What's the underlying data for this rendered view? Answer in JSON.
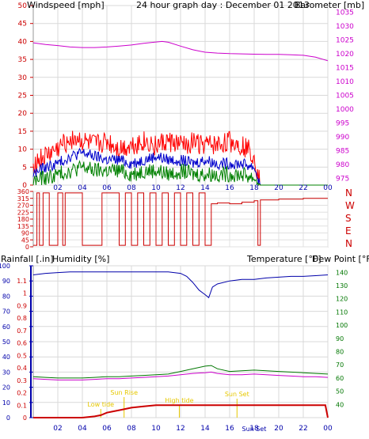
{
  "colors": {
    "wind_avg": "#0000cc",
    "wind_gust": "#ff0000",
    "wind_low": "#008000",
    "barometer": "#cc00cc",
    "direction": "#cc0000",
    "rain": "#cc0000",
    "humidity": "#0000aa",
    "temperature": "#007700",
    "dewpoint": "#cc00cc",
    "events": "#e6c800",
    "axis": "#cc0000"
  },
  "chart_data": [
    {
      "type": "line",
      "title": "24 hour graph day : December 01 2013",
      "left_axis_title": "Windspeed [mph]",
      "right_axis_title": "Barometer [mb]",
      "x_ticks": [
        "02",
        "04",
        "06",
        "08",
        "10",
        "12",
        "14",
        "16",
        "18",
        "20",
        "22",
        "00"
      ],
      "y_left_ticks": [
        "0",
        "5",
        "10",
        "15",
        "20",
        "25",
        "30",
        "35",
        "40",
        "45",
        "50"
      ],
      "y_left_range": [
        0,
        50
      ],
      "y_right_ticks": [
        "975",
        "980",
        "985",
        "990",
        "995",
        "1000",
        "1005",
        "1010",
        "1015",
        "1020",
        "1025",
        "1030",
        "1035"
      ],
      "y_right_range": [
        972.5,
        1037.5
      ],
      "x_range_hours": [
        0,
        24
      ],
      "series": [
        {
          "key": "wind_gust",
          "hours": [
            0,
            1,
            2,
            3,
            3.5,
            4,
            5,
            6,
            7,
            8,
            9,
            10,
            11,
            12,
            13,
            14,
            15,
            16,
            17,
            17.5,
            18,
            18.5,
            24
          ],
          "values": [
            6,
            8,
            10,
            13,
            13,
            12,
            11,
            12,
            10,
            11,
            12,
            11,
            12,
            11,
            12,
            11,
            11,
            12,
            11,
            10,
            8,
            0,
            0
          ]
        },
        {
          "key": "wind_avg",
          "hours": [
            0,
            1,
            2,
            3,
            4,
            5,
            6,
            7,
            8,
            9,
            10,
            11,
            12,
            13,
            14,
            15,
            16,
            17,
            18,
            18.5,
            24
          ],
          "values": [
            3,
            5,
            6,
            8,
            9,
            8,
            7,
            7,
            6,
            7,
            8,
            7,
            7,
            6,
            7,
            6,
            6,
            6,
            5,
            0,
            0
          ]
        },
        {
          "key": "wind_low",
          "hours": [
            0,
            1,
            2,
            3,
            4,
            5,
            6,
            7,
            8,
            9,
            10,
            11,
            12,
            13,
            14,
            15,
            16,
            17,
            18,
            18.5,
            24
          ],
          "values": [
            1,
            2,
            3,
            4,
            5,
            4,
            4,
            4,
            3,
            4,
            4,
            3,
            4,
            3,
            3,
            3,
            3,
            3,
            2,
            0,
            0
          ]
        },
        {
          "key": "barometer",
          "hours": [
            0,
            1,
            2,
            3,
            4,
            5,
            6,
            7,
            8,
            9,
            10,
            10.5,
            11,
            12,
            13,
            14,
            15,
            16,
            17,
            18,
            19,
            20,
            21,
            22,
            23,
            24
          ],
          "values": [
            1024,
            1023.4,
            1023,
            1022.5,
            1022.3,
            1022.3,
            1022.5,
            1022.8,
            1023.2,
            1023.8,
            1024.3,
            1024.5,
            1024.2,
            1022.8,
            1021.5,
            1020.6,
            1020.3,
            1020.1,
            1020,
            1019.9,
            1019.8,
            1019.8,
            1019.7,
            1019.5,
            1018.8,
            1017.5
          ]
        }
      ]
    },
    {
      "type": "line",
      "title": "",
      "y_left_ticks": [
        "0",
        "45",
        "90",
        "135",
        "180",
        "225",
        "270",
        "315",
        "360"
      ],
      "y_left_range": [
        0,
        360
      ],
      "compass_labels": [
        "N",
        "W",
        "S",
        "E",
        "N"
      ],
      "x_range_hours": [
        0,
        24
      ],
      "series": [
        {
          "key": "direction",
          "hours": [
            0,
            0.3,
            0.5,
            0.8,
            1,
            1.3,
            2,
            2.4,
            2.6,
            3,
            4,
            4.5,
            5,
            5.6,
            6,
            7,
            7.5,
            8,
            8.5,
            9,
            9.5,
            10,
            10.5,
            11,
            11.5,
            12,
            12.5,
            13,
            13.5,
            14,
            14.5,
            15,
            16,
            17,
            18,
            18.3,
            18.5,
            20,
            22,
            24
          ],
          "values": [
            10,
            350,
            10,
            350,
            350,
            10,
            350,
            10,
            350,
            350,
            10,
            10,
            10,
            350,
            350,
            10,
            350,
            10,
            350,
            10,
            350,
            10,
            350,
            10,
            350,
            10,
            350,
            10,
            350,
            10,
            280,
            285,
            280,
            290,
            300,
            10,
            305,
            310,
            315,
            315
          ]
        }
      ]
    },
    {
      "type": "line",
      "title": "",
      "left_axis_title_1": "Rainfall [.in]",
      "left_axis_title_2": "Humidity [%]",
      "right_axis_title_1": "Temperature [°F]",
      "right_axis_title_2": "Dew Point [°F]",
      "x_ticks": [
        "02",
        "04",
        "06",
        "08",
        "10",
        "12",
        "14",
        "16",
        "18",
        "20",
        "22",
        "00"
      ],
      "y_humidity_ticks": [
        "0",
        "10",
        "20",
        "30",
        "40",
        "50",
        "60",
        "70",
        "80",
        "90",
        "100"
      ],
      "y_humidity_range": [
        0,
        100
      ],
      "y_rain_ticks": [
        "0",
        "0.1",
        "0.2",
        "0.3",
        "0.4",
        "0.5",
        "0.6",
        "0.7",
        "0.8",
        "0.9",
        "1",
        "1.1"
      ],
      "y_rain_range": [
        0,
        1.22
      ],
      "y_temp_ticks": [
        "40",
        "50",
        "60",
        "70",
        "80",
        "90",
        "100",
        "110",
        "120",
        "130",
        "140"
      ],
      "y_temp_range": [
        30,
        145
      ],
      "x_range_hours": [
        0,
        24
      ],
      "events": [
        {
          "label": "Low tide",
          "hour": 5.5
        },
        {
          "label": "Sun Rise",
          "hour": 7.4
        },
        {
          "label": "High tide",
          "hour": 11.9
        },
        {
          "label": "Sun Set",
          "hour": 16.6
        },
        {
          "label": "Sun Set",
          "hour": 18.0
        }
      ],
      "series": [
        {
          "key": "humidity",
          "hours": [
            0,
            1,
            2,
            3,
            4,
            5,
            6,
            7,
            8,
            9,
            10,
            11,
            12,
            12.5,
            13,
            13.5,
            14,
            14.3,
            14.6,
            15,
            16,
            17,
            18,
            19,
            20,
            21,
            22,
            23,
            24
          ],
          "values": [
            94,
            95,
            95.5,
            96,
            96,
            96,
            96,
            96,
            96,
            96,
            96,
            96,
            95,
            93,
            89,
            84,
            81,
            79,
            86,
            88,
            90,
            91,
            91,
            92,
            92.5,
            93,
            93,
            93.5,
            94
          ]
        },
        {
          "key": "temperature",
          "hours": [
            0,
            1,
            2,
            3,
            4,
            5,
            6,
            7,
            8,
            9,
            10,
            11,
            12,
            13,
            14,
            14.5,
            15,
            16,
            17,
            18,
            19,
            20,
            21,
            22,
            23,
            24
          ],
          "values": [
            61,
            60.5,
            60,
            60,
            60,
            60.5,
            61,
            61,
            61.5,
            62,
            62.5,
            63,
            65,
            67,
            69,
            69.5,
            67,
            65,
            65.5,
            66,
            65.5,
            65,
            64.5,
            64,
            63.5,
            63
          ]
        },
        {
          "key": "dewpoint",
          "hours": [
            0,
            1,
            2,
            3,
            4,
            5,
            6,
            7,
            8,
            9,
            10,
            11,
            12,
            13,
            14,
            14.5,
            15,
            16,
            17,
            18,
            19,
            20,
            21,
            22,
            23,
            24
          ],
          "values": [
            59.5,
            59,
            58.5,
            58.5,
            58.5,
            59,
            59.5,
            59.5,
            60,
            60.5,
            61,
            61.5,
            62.5,
            63.5,
            64,
            64.5,
            63.5,
            62.5,
            62.5,
            63,
            62.5,
            62,
            61.5,
            61,
            61,
            60.5
          ]
        },
        {
          "key": "rain",
          "hours": [
            0,
            1,
            2,
            3,
            4,
            5,
            5.5,
            6,
            6.5,
            7,
            7.5,
            8,
            9,
            10,
            11,
            12,
            13,
            14,
            15,
            16,
            17,
            18,
            19,
            20,
            21,
            22,
            23,
            23.8,
            24
          ],
          "values": [
            0,
            0,
            0,
            0,
            0,
            0.01,
            0.02,
            0.04,
            0.05,
            0.06,
            0.07,
            0.08,
            0.09,
            0.1,
            0.1,
            0.1,
            0.1,
            0.1,
            0.1,
            0.1,
            0.1,
            0.1,
            0.1,
            0.1,
            0.1,
            0.1,
            0.1,
            0.1,
            0
          ]
        }
      ]
    }
  ]
}
